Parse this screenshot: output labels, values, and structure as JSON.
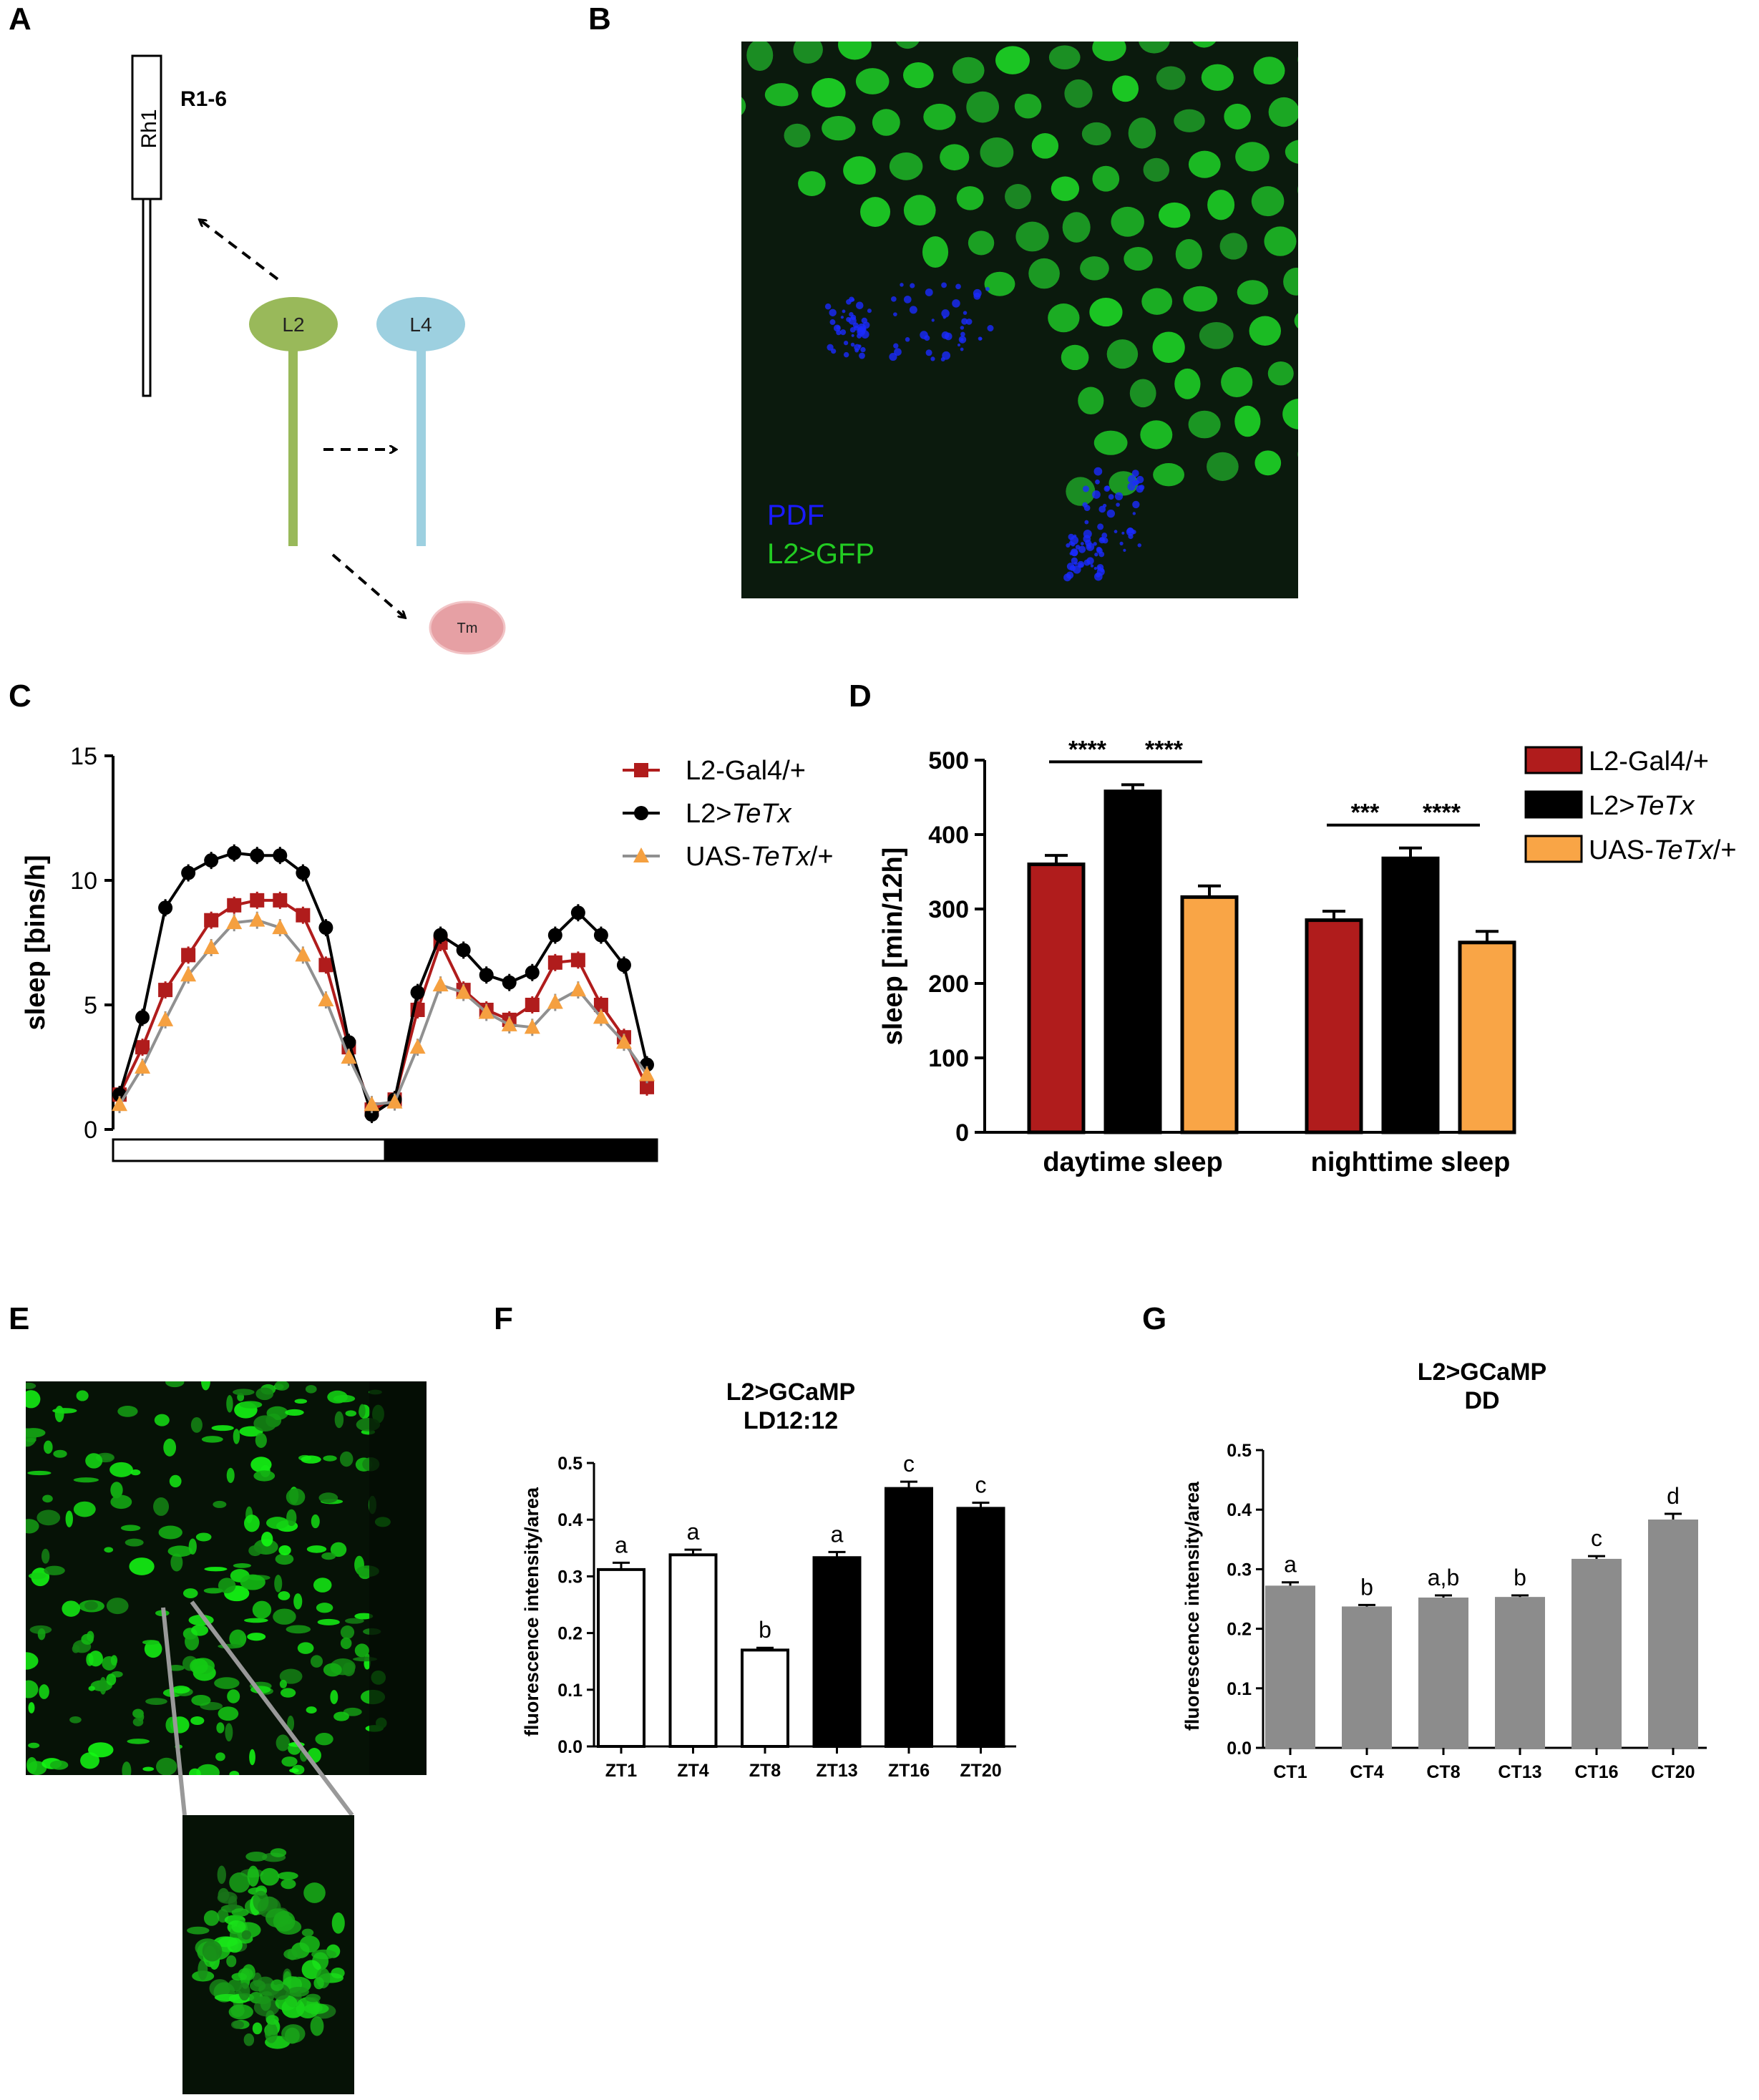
{
  "panel_labels": [
    "A",
    "B",
    "C",
    "D",
    "E",
    "F",
    "G"
  ],
  "panelA": {
    "rh1_label": "Rh1",
    "r16_label": "R1-6",
    "l2_label": "L2",
    "l4_label": "L4",
    "tm_label": "Tm",
    "colors": {
      "l2": "#99b95a",
      "l4": "#9dd0e0",
      "tm": "#e6a0a4"
    }
  },
  "panelB": {
    "legend_pdf": "PDF",
    "legend_gfp": "L2>GFP",
    "colors": {
      "pdf": "#1a1aff",
      "gfp": "#22cc22"
    }
  },
  "chart_data": [
    {
      "panel": "C",
      "type": "line",
      "xlabel": "",
      "ylabel": "sleep [bins/h]",
      "ylim": [
        0,
        15
      ],
      "yticks": [
        "0",
        "5",
        "10",
        "15"
      ],
      "x": [
        1,
        2,
        3,
        4,
        5,
        6,
        7,
        8,
        9,
        10,
        11,
        12,
        13,
        14,
        15,
        16,
        17,
        18,
        19,
        20,
        21,
        22,
        23,
        24
      ],
      "light_dark_bar": [
        "light",
        "dark"
      ],
      "series": [
        {
          "name": "L2-Gal4/+",
          "marker": "square",
          "color": "#b01c1c",
          "values": [
            1.4,
            3.3,
            5.6,
            7.0,
            8.4,
            9.0,
            9.2,
            9.2,
            8.6,
            6.6,
            3.3,
            0.8,
            1.2,
            4.8,
            7.5,
            5.6,
            4.8,
            4.4,
            5.0,
            6.7,
            6.8,
            5.0,
            3.7,
            1.7
          ]
        },
        {
          "name": "L2>TeTx",
          "name_prefix": "L2>",
          "name_italic": "TeTx",
          "name_suffix": "",
          "marker": "circle",
          "color": "#000000",
          "values": [
            1.4,
            4.5,
            8.9,
            10.3,
            10.8,
            11.1,
            11.0,
            11.0,
            10.3,
            8.1,
            3.5,
            0.6,
            1.2,
            5.5,
            7.8,
            7.2,
            6.2,
            5.9,
            6.3,
            7.8,
            8.7,
            7.8,
            6.6,
            2.6
          ]
        },
        {
          "name": "UAS-TeTx/+",
          "name_prefix": "UAS-",
          "name_italic": "TeTx",
          "name_suffix": "/+",
          "marker": "triangle",
          "color": "#f5a040",
          "line_color": "#909090",
          "values": [
            1.0,
            2.5,
            4.4,
            6.2,
            7.3,
            8.3,
            8.4,
            8.1,
            7.0,
            5.2,
            2.9,
            1.0,
            1.1,
            3.3,
            5.8,
            5.5,
            4.7,
            4.2,
            4.1,
            5.1,
            5.6,
            4.5,
            3.5,
            2.2
          ]
        }
      ]
    },
    {
      "panel": "D",
      "type": "bar",
      "ylabel": "sleep [min/12h]",
      "ylim": [
        0,
        500
      ],
      "yticks": [
        "0",
        "100",
        "200",
        "300",
        "400",
        "500"
      ],
      "categories": [
        "daytime sleep",
        "nighttime sleep"
      ],
      "series": [
        {
          "name": "L2-Gal4/+",
          "color": "#b01c1c",
          "values": [
            360,
            285
          ],
          "errors": [
            12,
            12
          ]
        },
        {
          "name": "L2>TeTx",
          "name_prefix": "L2>",
          "name_italic": "TeTx",
          "name_suffix": "",
          "color": "#000000",
          "values": [
            458,
            368
          ],
          "errors": [
            9,
            14
          ]
        },
        {
          "name": "UAS-TeTx/+",
          "name_prefix": "UAS-",
          "name_italic": "TeTx",
          "name_suffix": "/+",
          "color": "#f9a546",
          "values": [
            316,
            255
          ],
          "errors": [
            15,
            15
          ]
        }
      ],
      "significance": [
        {
          "text": "****",
          "category": 0,
          "from": 0,
          "to": 1
        },
        {
          "text": "****",
          "category": 0,
          "from": 1,
          "to": 2
        },
        {
          "text": "***",
          "category": 1,
          "from": 0,
          "to": 1
        },
        {
          "text": "****",
          "category": 1,
          "from": 1,
          "to": 2
        }
      ]
    },
    {
      "panel": "F",
      "type": "bar",
      "title": "L2>GCaMP",
      "subtitle": "LD12:12",
      "ylabel": "fluorescence intensity/area",
      "ylim": [
        0,
        0.5
      ],
      "yticks": [
        "0.0",
        "0.1",
        "0.2",
        "0.3",
        "0.4",
        "0.5"
      ],
      "categories": [
        "ZT1",
        "ZT4",
        "ZT8",
        "ZT13",
        "ZT16",
        "ZT20"
      ],
      "values": [
        0.312,
        0.338,
        0.17,
        0.333,
        0.455,
        0.42
      ],
      "errors": [
        0.012,
        0.009,
        0.004,
        0.01,
        0.012,
        0.01
      ],
      "fills": [
        "#ffffff",
        "#ffffff",
        "#ffffff",
        "#000000",
        "#000000",
        "#000000"
      ],
      "letters": [
        "a",
        "a",
        "b",
        "a",
        "c",
        "c"
      ]
    },
    {
      "panel": "G",
      "type": "bar",
      "title": "L2>GCaMP",
      "subtitle": "DD",
      "ylabel": "fluorescence intensity/area",
      "ylim": [
        0,
        0.5
      ],
      "yticks": [
        "0.0",
        "0.1",
        "0.2",
        "0.3",
        "0.4",
        "0.5"
      ],
      "categories": [
        "CT1",
        "CT4",
        "CT8",
        "CT13",
        "CT16",
        "CT20"
      ],
      "values": [
        0.27,
        0.235,
        0.25,
        0.251,
        0.315,
        0.381
      ],
      "errors": [
        0.008,
        0.005,
        0.006,
        0.005,
        0.007,
        0.012
      ],
      "fills": [
        "#8c8c8c",
        "#8c8c8c",
        "#8c8c8c",
        "#8c8c8c",
        "#8c8c8c",
        "#8c8c8c"
      ],
      "letters": [
        "a",
        "b",
        "a,b",
        "b",
        "c",
        "d"
      ]
    }
  ]
}
